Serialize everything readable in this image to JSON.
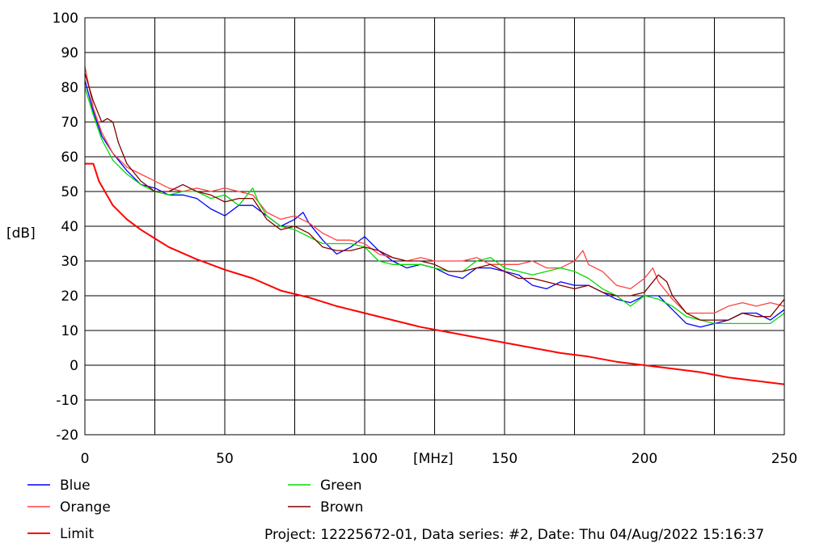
{
  "chart_data": {
    "type": "line",
    "title": "",
    "ylabel": "[dB]",
    "xlabel": "[MHz]",
    "xlim": [
      0,
      250
    ],
    "ylim": [
      -20,
      100
    ],
    "x_ticks": [
      0,
      50,
      100,
      150,
      200,
      250
    ],
    "y_ticks": [
      -20,
      -10,
      0,
      10,
      20,
      30,
      40,
      50,
      60,
      70,
      80,
      90,
      100
    ],
    "x_grid_step": 25,
    "grid": true,
    "legend_position": "bottom",
    "series": [
      {
        "name": "Blue",
        "color": "#0000ff",
        "points": [
          [
            0,
            82
          ],
          [
            3,
            73
          ],
          [
            6,
            66
          ],
          [
            10,
            61
          ],
          [
            15,
            56
          ],
          [
            20,
            52
          ],
          [
            25,
            51
          ],
          [
            30,
            49
          ],
          [
            35,
            49
          ],
          [
            40,
            48
          ],
          [
            45,
            45
          ],
          [
            50,
            43
          ],
          [
            55,
            46
          ],
          [
            60,
            46
          ],
          [
            65,
            43
          ],
          [
            70,
            40
          ],
          [
            75,
            42
          ],
          [
            78,
            44
          ],
          [
            80,
            41
          ],
          [
            85,
            36
          ],
          [
            90,
            32
          ],
          [
            95,
            34
          ],
          [
            100,
            37
          ],
          [
            105,
            33
          ],
          [
            110,
            30
          ],
          [
            115,
            28
          ],
          [
            120,
            29
          ],
          [
            125,
            28
          ],
          [
            130,
            26
          ],
          [
            135,
            25
          ],
          [
            140,
            28
          ],
          [
            145,
            28
          ],
          [
            150,
            27
          ],
          [
            155,
            26
          ],
          [
            160,
            23
          ],
          [
            165,
            22
          ],
          [
            170,
            24
          ],
          [
            175,
            23
          ],
          [
            180,
            23
          ],
          [
            185,
            21
          ],
          [
            190,
            19
          ],
          [
            195,
            18
          ],
          [
            200,
            20
          ],
          [
            205,
            20
          ],
          [
            210,
            16
          ],
          [
            215,
            12
          ],
          [
            220,
            11
          ],
          [
            225,
            12
          ],
          [
            230,
            13
          ],
          [
            235,
            15
          ],
          [
            240,
            15
          ],
          [
            245,
            13
          ],
          [
            250,
            16
          ]
        ]
      },
      {
        "name": "Orange",
        "color": "#ff4040",
        "points": [
          [
            0,
            86
          ],
          [
            3,
            74
          ],
          [
            6,
            67
          ],
          [
            10,
            61
          ],
          [
            15,
            57
          ],
          [
            20,
            55
          ],
          [
            25,
            53
          ],
          [
            30,
            51
          ],
          [
            35,
            50
          ],
          [
            40,
            51
          ],
          [
            45,
            50
          ],
          [
            50,
            51
          ],
          [
            55,
            50
          ],
          [
            60,
            49
          ],
          [
            65,
            44
          ],
          [
            70,
            42
          ],
          [
            75,
            43
          ],
          [
            80,
            41
          ],
          [
            85,
            38
          ],
          [
            90,
            36
          ],
          [
            95,
            36
          ],
          [
            100,
            35
          ],
          [
            105,
            32
          ],
          [
            110,
            31
          ],
          [
            115,
            30
          ],
          [
            120,
            31
          ],
          [
            125,
            30
          ],
          [
            130,
            30
          ],
          [
            135,
            30
          ],
          [
            140,
            31
          ],
          [
            145,
            29
          ],
          [
            150,
            29
          ],
          [
            155,
            29
          ],
          [
            160,
            30
          ],
          [
            165,
            28
          ],
          [
            170,
            28
          ],
          [
            175,
            30
          ],
          [
            178,
            33
          ],
          [
            180,
            29
          ],
          [
            185,
            27
          ],
          [
            190,
            23
          ],
          [
            195,
            22
          ],
          [
            200,
            25
          ],
          [
            203,
            28
          ],
          [
            205,
            24
          ],
          [
            210,
            19
          ],
          [
            215,
            15
          ],
          [
            220,
            15
          ],
          [
            225,
            15
          ],
          [
            230,
            17
          ],
          [
            235,
            18
          ],
          [
            240,
            17
          ],
          [
            245,
            18
          ],
          [
            250,
            17
          ]
        ]
      },
      {
        "name": "Green",
        "color": "#00dd00",
        "points": [
          [
            0,
            80
          ],
          [
            3,
            72
          ],
          [
            6,
            65
          ],
          [
            10,
            59
          ],
          [
            15,
            55
          ],
          [
            20,
            52
          ],
          [
            25,
            50
          ],
          [
            30,
            49
          ],
          [
            35,
            50
          ],
          [
            40,
            50
          ],
          [
            45,
            48
          ],
          [
            50,
            49
          ],
          [
            55,
            46
          ],
          [
            60,
            51
          ],
          [
            62,
            47
          ],
          [
            65,
            43
          ],
          [
            70,
            40
          ],
          [
            75,
            39
          ],
          [
            80,
            37
          ],
          [
            85,
            35
          ],
          [
            90,
            35
          ],
          [
            95,
            35
          ],
          [
            100,
            34
          ],
          [
            105,
            30
          ],
          [
            110,
            29
          ],
          [
            115,
            29
          ],
          [
            120,
            29
          ],
          [
            125,
            28
          ],
          [
            130,
            27
          ],
          [
            135,
            27
          ],
          [
            140,
            30
          ],
          [
            145,
            31
          ],
          [
            150,
            28
          ],
          [
            155,
            27
          ],
          [
            160,
            26
          ],
          [
            165,
            27
          ],
          [
            170,
            28
          ],
          [
            175,
            27
          ],
          [
            180,
            25
          ],
          [
            185,
            22
          ],
          [
            190,
            20
          ],
          [
            195,
            17
          ],
          [
            200,
            20
          ],
          [
            205,
            19
          ],
          [
            210,
            17
          ],
          [
            215,
            14
          ],
          [
            220,
            13
          ],
          [
            225,
            12
          ],
          [
            230,
            12
          ],
          [
            235,
            12
          ],
          [
            240,
            12
          ],
          [
            245,
            12
          ],
          [
            250,
            15
          ]
        ]
      },
      {
        "name": "Brown",
        "color": "#800000",
        "points": [
          [
            0,
            84
          ],
          [
            3,
            76
          ],
          [
            6,
            70
          ],
          [
            8,
            71
          ],
          [
            10,
            70
          ],
          [
            12,
            64
          ],
          [
            15,
            58
          ],
          [
            20,
            53
          ],
          [
            25,
            50
          ],
          [
            30,
            50
          ],
          [
            35,
            52
          ],
          [
            40,
            50
          ],
          [
            45,
            49
          ],
          [
            50,
            47
          ],
          [
            55,
            48
          ],
          [
            60,
            48
          ],
          [
            65,
            42
          ],
          [
            70,
            39
          ],
          [
            75,
            40
          ],
          [
            80,
            38
          ],
          [
            85,
            34
          ],
          [
            90,
            33
          ],
          [
            95,
            33
          ],
          [
            100,
            34
          ],
          [
            105,
            33
          ],
          [
            110,
            31
          ],
          [
            115,
            30
          ],
          [
            120,
            30
          ],
          [
            125,
            29
          ],
          [
            130,
            27
          ],
          [
            135,
            27
          ],
          [
            140,
            28
          ],
          [
            145,
            29
          ],
          [
            150,
            27
          ],
          [
            155,
            25
          ],
          [
            160,
            25
          ],
          [
            165,
            24
          ],
          [
            170,
            23
          ],
          [
            175,
            22
          ],
          [
            180,
            23
          ],
          [
            185,
            21
          ],
          [
            190,
            20
          ],
          [
            195,
            20
          ],
          [
            200,
            21
          ],
          [
            205,
            26
          ],
          [
            208,
            24
          ],
          [
            210,
            20
          ],
          [
            215,
            15
          ],
          [
            220,
            13
          ],
          [
            225,
            13
          ],
          [
            230,
            13
          ],
          [
            235,
            15
          ],
          [
            240,
            14
          ],
          [
            245,
            14
          ],
          [
            250,
            19
          ]
        ]
      },
      {
        "name": "Limit",
        "color": "#ff0000",
        "points": [
          [
            0,
            58
          ],
          [
            3,
            58
          ],
          [
            5,
            53
          ],
          [
            10,
            46
          ],
          [
            15,
            42
          ],
          [
            20,
            39
          ],
          [
            25,
            36.5
          ],
          [
            30,
            34
          ],
          [
            40,
            30.5
          ],
          [
            50,
            27.5
          ],
          [
            60,
            25
          ],
          [
            70,
            21.5
          ],
          [
            80,
            19.5
          ],
          [
            90,
            17
          ],
          [
            100,
            15
          ],
          [
            110,
            13
          ],
          [
            120,
            11
          ],
          [
            130,
            9.5
          ],
          [
            140,
            8
          ],
          [
            150,
            6.5
          ],
          [
            160,
            5
          ],
          [
            170,
            3.5
          ],
          [
            180,
            2.5
          ],
          [
            190,
            1
          ],
          [
            200,
            0
          ],
          [
            210,
            -1
          ],
          [
            220,
            -2
          ],
          [
            230,
            -3.5
          ],
          [
            240,
            -4.5
          ],
          [
            250,
            -5.5
          ]
        ]
      }
    ]
  },
  "footer": {
    "info": "Project: 12225672-01, Data series: #2, Date: Thu 04/Aug/2022 15:16:37"
  }
}
